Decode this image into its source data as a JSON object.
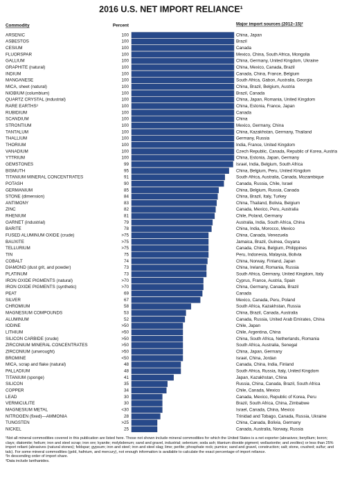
{
  "chart_data": {
    "type": "barh",
    "title": "2016 U.S. NET IMPORT RELIANCE¹",
    "headers": [
      "Commodity",
      "Percent",
      "Major import sources (2012–15)²"
    ],
    "categories": [
      "ARSENIC",
      "ASBESTOS",
      "CESIUM",
      "FLUORSPAR",
      "GALLIUM",
      "GRAPHITE (natural)",
      "INDIUM",
      "MANGANESE",
      "MICA, sheet (natural)",
      "NIOBIUM (columbium)",
      "QUARTZ CRYSTAL (industrial)",
      "RARE EARTHS³",
      "RUBIDIUM",
      "SCANDIUM",
      "STRONTIUM",
      "TANTALUM",
      "THALLIUM",
      "THORIUM",
      "VANADIUM",
      "YTTRIUM",
      "GEMSTONES",
      "BISMUTH",
      "TITANIUM MINERAL CONCENTRATES",
      "POTASH",
      "GERMANIUM",
      "STONE (dimension)",
      "ANTIMONY",
      "ZINC",
      "RHENIUM",
      "GARNET (industrial)",
      "BARITE",
      "FUSED ALUMINUM OXIDE (crude)",
      "BAUXITE",
      "TELLURIUM",
      "TIN",
      "COBALT",
      "DIAMOND (dust grit, and powder)",
      "PLATINUM",
      "IRON OXIDE PIGMENTS (natural)",
      "IRON OXIDE PIGMENTS (synthetic)",
      "PEAT",
      "SILVER",
      "CHROMIUM",
      "MAGNESIUM COMPOUNDS",
      "ALUMINUM",
      "IODINE",
      "LITHIUM",
      "SILICON CARBIDE (crude)",
      "ZIRCONIUM MINERAL CONCENTRATES",
      "ZIRCONIUM (unwrought)",
      "BROMINE",
      "MICA, scrap and flake (natural)",
      "PALLADIUM",
      "TITANIUM (sponge)",
      "SILICON",
      "COPPER",
      "LEAD",
      "VERMICULITE",
      "MAGNESIUM METAL",
      "NITROGEN (fixed)—AMMONIA",
      "TUNGSTEN",
      "NICKEL"
    ],
    "values": [
      100,
      100,
      100,
      100,
      100,
      100,
      100,
      100,
      100,
      100,
      100,
      100,
      100,
      100,
      100,
      100,
      100,
      100,
      100,
      100,
      99,
      95,
      91,
      90,
      85,
      84,
      83,
      82,
      81,
      79,
      78,
      75,
      75,
      75,
      75,
      74,
      73,
      73,
      70,
      70,
      69,
      67,
      58,
      53,
      52,
      50,
      50,
      50,
      50,
      50,
      50,
      48,
      48,
      41,
      35,
      34,
      30,
      30,
      30,
      28,
      25,
      25
    ],
    "value_labels": [
      "100",
      "100",
      "100",
      "100",
      "100",
      "100",
      "100",
      "100",
      "100",
      "100",
      "100",
      "100",
      "100",
      "100",
      "100",
      "100",
      "100",
      "100",
      "100",
      "100",
      "99",
      "95",
      "91",
      "90",
      "85",
      "84",
      "83",
      "82",
      "81",
      "79",
      "78",
      ">75",
      ">75",
      ">75",
      "75",
      "74",
      "73",
      "73",
      ">70",
      ">70",
      "69",
      "67",
      "58",
      "53",
      "52",
      ">50",
      ">50",
      ">50",
      ">50",
      ">50",
      "<50",
      "48",
      "48",
      "41",
      "35",
      "34",
      "30",
      "30",
      "<30",
      "28",
      ">25",
      "25"
    ],
    "sources": [
      "China, Japan",
      "Brazil",
      "Canada",
      "Mexico, China, South Africa, Mongolia",
      "China, Germany, United Kingdom, Ukraine",
      "China, Mexico, Canada, Brazil",
      "Canada, China, France, Belgium",
      "South Africa, Gabon, Australia, Georgia",
      "China, Brazil, Belgium, Austria",
      "Brazil, Canada",
      "China, Japan, Romania, United Kingdom",
      "China, Estonia, France, Japan",
      "Canada",
      "China",
      "Mexico, Germany, China",
      "China, Kazakhstan, Germany, Thailand",
      "Germany, Russia",
      "India, France, United Kingdom",
      "Czech Republic, Canada, Republic of Korea, Austria",
      "China, Estonia, Japan, Germany",
      "Israel, India, Belgium, South Africa",
      "China, Belgium, Peru, United Kingdom",
      "South Africa, Australia, Canada, Mozambique",
      "Canada, Russia, Chile, Israel",
      "China, Belgium, Russia, Canada",
      "China, Brazil, Italy, Turkey",
      "China, Thailand, Bolivia, Belgium",
      "Canada, Mexico, Peru, Australia",
      "Chile, Poland, Germany",
      "Australia, India, South Africa, China",
      "China, India, Morocco, Mexico",
      "China, Canada, Venezuela",
      "Jamaica, Brazil, Guinea, Guyana",
      "Canada, China, Belgium, Philippines",
      "Peru, Indonesia, Malaysia, Bolivia",
      "China, Norway, Finland, Japan",
      "China, Ireland, Romania, Russia",
      "South Africa, Germany, United Kingdom, Italy",
      "Cyprus, France, Austria, Spain",
      "China, Germany, Canada, Brazil",
      "Canada",
      "Mexico, Canada, Peru, Poland",
      "South Africa, Kazakhstan, Russia",
      "China, Brazil, Canada, Australia",
      "Canada, Russia, United Arab Emirates, China",
      "Chile, Japan",
      "Chile, Argentina, China",
      "China, South Africa, Netherlands, Romania",
      "South Africa, Australia, Senegal",
      "China, Japan, Germany",
      "Israel, China, Jordan",
      "Canada, China, India, Finland",
      "South Africa, Russia, Italy, United Kingdom",
      "Japan, Kazakhstan, China",
      "Russia, China, Canada, Brazil, South Africa",
      "Chile, Canada, Mexico",
      "Canada, Mexico, Republic of Korea, Peru",
      "Brazil, South Africa, China, Zimbabwe",
      "Israel, Canada, China, Mexico",
      "Trinidad and Tobago, Canada, Russia, Ukraine",
      "China, Canada, Bolivia, Germany",
      "Canada, Australia, Norway, Russia"
    ],
    "color": "#27498a",
    "xlim": [
      0,
      100
    ],
    "footnotes": [
      "¹Not all mineral commodities covered in this publication are listed here. Those not shown include mineral commodities for which the United States is a net exporter (abrasives; beryllium; boron; clays; diatomite; helium; iron and steel scrap; iron ore; kyanite; molybdenum; sand and gravel, industrial; selenium; soda ash; titanium dioxide pigment; wollastonite; and zeolites) or less than 25% import reliant (abrasives (natural stones); feldspar; gypsum; iron and steel; iron and steel slag; lime; perlite; phosphate rock; pumice; sand and gravel, construction; salt; stone, crushed; sulfur; and talc). For some mineral commodities (gold, hafnium, and mercury), not enough information is available to calculate the exact percentage of import reliance.",
      "²In descending order of import share.",
      "³Data include lanthanides."
    ]
  }
}
